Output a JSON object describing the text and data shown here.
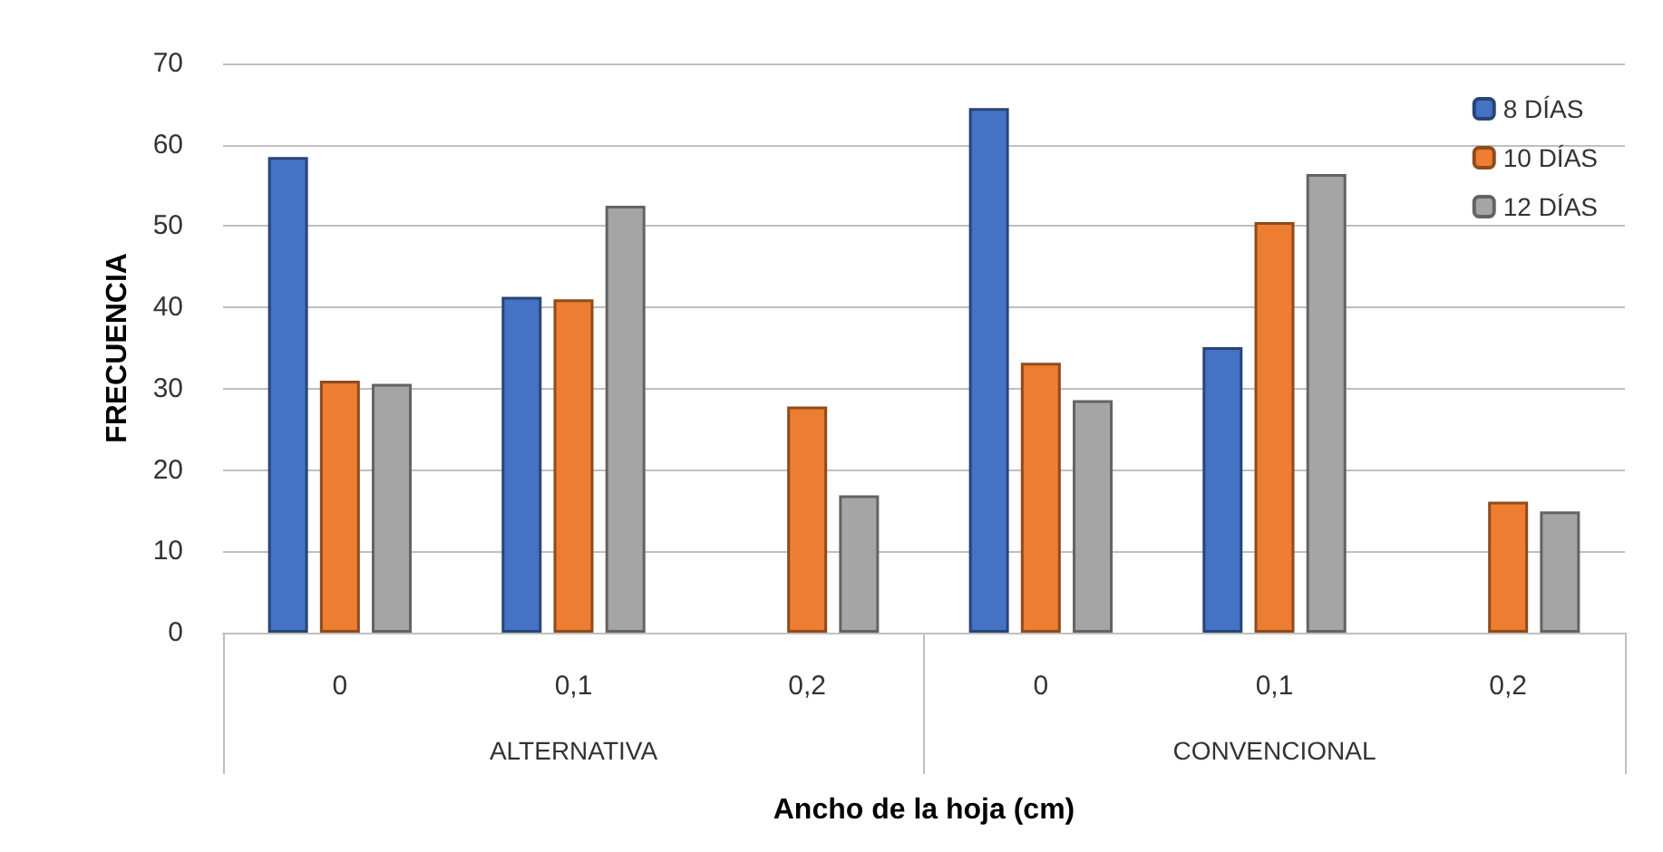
{
  "chart_data": {
    "type": "bar",
    "xlabel": "Ancho de la hoja (cm)",
    "ylabel": "FRECUENCIA",
    "categories": [
      "0",
      "0,1",
      "0,2",
      "0",
      "0,1",
      "0,2"
    ],
    "annotations": [
      "ALTERNATIVA",
      "CONVENCIONAL"
    ],
    "series": [
      {
        "name": "8 DÍAS",
        "color": "#4472c4",
        "values": [
          58.5,
          41.3,
          null,
          64.5,
          35.1,
          null
        ]
      },
      {
        "name": "10 DÍAS",
        "color": "#ed7d31",
        "values": [
          31.0,
          41.0,
          27.8,
          33.2,
          50.5,
          16.1
        ]
      },
      {
        "name": "12 DÍAS",
        "color": "#a5a5a5",
        "values": [
          30.6,
          52.5,
          16.9,
          28.6,
          56.4,
          14.9
        ]
      }
    ],
    "ylim": [
      0,
      70
    ],
    "yticks": [
      0,
      10,
      20,
      30,
      40,
      50,
      60,
      70
    ],
    "grid": "y",
    "legend": "top right"
  }
}
